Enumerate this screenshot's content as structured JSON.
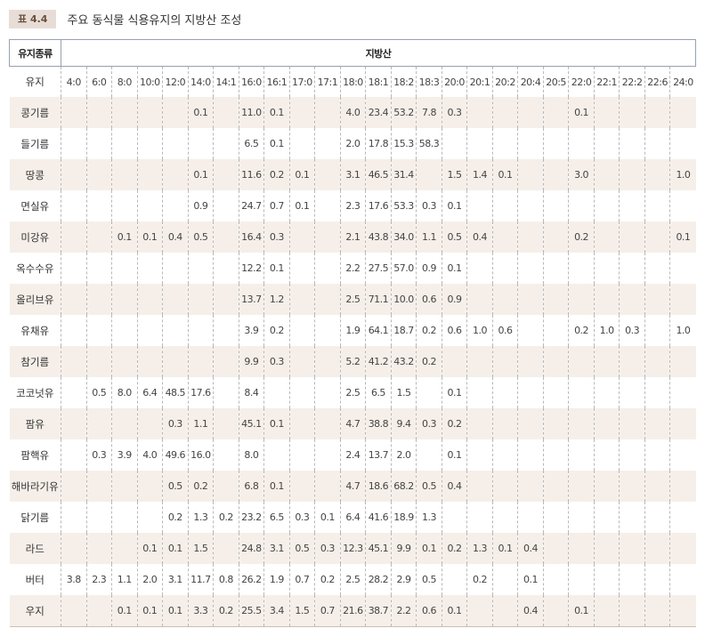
{
  "caption": {
    "badge": "표 4.4",
    "title": "주요 동식물 식용유지의 지방산 조성"
  },
  "table": {
    "header_oil": "유지종류",
    "header_fa": "지방산",
    "row_header_label": "유지",
    "fatty_acids": [
      "4:0",
      "6:0",
      "8:0",
      "10:0",
      "12:0",
      "14:0",
      "14:1",
      "16:0",
      "16:1",
      "17:0",
      "17:1",
      "18:0",
      "18:1",
      "18:2",
      "18:3",
      "20:0",
      "20:1",
      "20:2",
      "20:4",
      "20:5",
      "22:0",
      "22:1",
      "22:2",
      "22:6",
      "24:0"
    ],
    "rows": [
      {
        "name": "콩기름",
        "values": [
          "",
          "",
          "",
          "",
          "",
          "0.1",
          "",
          "11.0",
          "0.1",
          "",
          "",
          "4.0",
          "23.4",
          "53.2",
          "7.8",
          "0.3",
          "",
          "",
          "",
          "",
          "0.1",
          "",
          "",
          "",
          ""
        ]
      },
      {
        "name": "들기름",
        "values": [
          "",
          "",
          "",
          "",
          "",
          "",
          "",
          "6.5",
          "0.1",
          "",
          "",
          "2.0",
          "17.8",
          "15.3",
          "58.3",
          "",
          "",
          "",
          "",
          "",
          "",
          "",
          "",
          "",
          ""
        ]
      },
      {
        "name": "땅콩",
        "values": [
          "",
          "",
          "",
          "",
          "",
          "0.1",
          "",
          "11.6",
          "0.2",
          "0.1",
          "",
          "3.1",
          "46.5",
          "31.4",
          "",
          "1.5",
          "1.4",
          "0.1",
          "",
          "",
          "3.0",
          "",
          "",
          "",
          "1.0"
        ]
      },
      {
        "name": "면실유",
        "values": [
          "",
          "",
          "",
          "",
          "",
          "0.9",
          "",
          "24.7",
          "0.7",
          "0.1",
          "",
          "2.3",
          "17.6",
          "53.3",
          "0.3",
          "0.1",
          "",
          "",
          "",
          "",
          "",
          "",
          "",
          "",
          ""
        ]
      },
      {
        "name": "미강유",
        "values": [
          "",
          "",
          "0.1",
          "0.1",
          "0.4",
          "0.5",
          "",
          "16.4",
          "0.3",
          "",
          "",
          "2.1",
          "43.8",
          "34.0",
          "1.1",
          "0.5",
          "0.4",
          "",
          "",
          "",
          "0.2",
          "",
          "",
          "",
          "0.1"
        ]
      },
      {
        "name": "옥수수유",
        "values": [
          "",
          "",
          "",
          "",
          "",
          "",
          "",
          "12.2",
          "0.1",
          "",
          "",
          "2.2",
          "27.5",
          "57.0",
          "0.9",
          "0.1",
          "",
          "",
          "",
          "",
          "",
          "",
          "",
          "",
          ""
        ]
      },
      {
        "name": "올리브유",
        "values": [
          "",
          "",
          "",
          "",
          "",
          "",
          "",
          "13.7",
          "1.2",
          "",
          "",
          "2.5",
          "71.1",
          "10.0",
          "0.6",
          "0.9",
          "",
          "",
          "",
          "",
          "",
          "",
          "",
          "",
          ""
        ]
      },
      {
        "name": "유채유",
        "values": [
          "",
          "",
          "",
          "",
          "",
          "",
          "",
          "3.9",
          "0.2",
          "",
          "",
          "1.9",
          "64.1",
          "18.7",
          "0.2",
          "0.6",
          "1.0",
          "0.6",
          "",
          "",
          "0.2",
          "1.0",
          "0.3",
          "",
          "1.0"
        ]
      },
      {
        "name": "참기름",
        "values": [
          "",
          "",
          "",
          "",
          "",
          "",
          "",
          "9.9",
          "0.3",
          "",
          "",
          "5.2",
          "41.2",
          "43.2",
          "0.2",
          "",
          "",
          "",
          "",
          "",
          "",
          "",
          "",
          "",
          ""
        ]
      },
      {
        "name": "코코넛유",
        "values": [
          "",
          "0.5",
          "8.0",
          "6.4",
          "48.5",
          "17.6",
          "",
          "8.4",
          "",
          "",
          "",
          "2.5",
          "6.5",
          "1.5",
          "",
          "0.1",
          "",
          "",
          "",
          "",
          "",
          "",
          "",
          "",
          ""
        ]
      },
      {
        "name": "팜유",
        "values": [
          "",
          "",
          "",
          "",
          "0.3",
          "1.1",
          "",
          "45.1",
          "0.1",
          "",
          "",
          "4.7",
          "38.8",
          "9.4",
          "0.3",
          "0.2",
          "",
          "",
          "",
          "",
          "",
          "",
          "",
          "",
          ""
        ]
      },
      {
        "name": "팜핵유",
        "values": [
          "",
          "0.3",
          "3.9",
          "4.0",
          "49.6",
          "16.0",
          "",
          "8.0",
          "",
          "",
          "",
          "2.4",
          "13.7",
          "2.0",
          "",
          "0.1",
          "",
          "",
          "",
          "",
          "",
          "",
          "",
          "",
          ""
        ]
      },
      {
        "name": "해바라기유",
        "values": [
          "",
          "",
          "",
          "",
          "0.5",
          "0.2",
          "",
          "6.8",
          "0.1",
          "",
          "",
          "4.7",
          "18.6",
          "68.2",
          "0.5",
          "0.4",
          "",
          "",
          "",
          "",
          "",
          "",
          "",
          "",
          ""
        ]
      },
      {
        "name": "닭기름",
        "values": [
          "",
          "",
          "",
          "",
          "0.2",
          "1.3",
          "0.2",
          "23.2",
          "6.5",
          "0.3",
          "0.1",
          "6.4",
          "41.6",
          "18.9",
          "1.3",
          "",
          "",
          "",
          "",
          "",
          "",
          "",
          "",
          "",
          ""
        ]
      },
      {
        "name": "라드",
        "values": [
          "",
          "",
          "",
          "0.1",
          "0.1",
          "1.5",
          "",
          "24.8",
          "3.1",
          "0.5",
          "0.3",
          "12.3",
          "45.1",
          "9.9",
          "0.1",
          "0.2",
          "1.3",
          "0.1",
          "0.4",
          "",
          "",
          "",
          "",
          "",
          ""
        ]
      },
      {
        "name": "버터",
        "values": [
          "3.8",
          "2.3",
          "1.1",
          "2.0",
          "3.1",
          "11.7",
          "0.8",
          "26.2",
          "1.9",
          "0.7",
          "0.2",
          "2.5",
          "28.2",
          "2.9",
          "0.5",
          "",
          "0.2",
          "",
          "0.1",
          "",
          "",
          "",
          "",
          "",
          ""
        ]
      },
      {
        "name": "우지",
        "values": [
          "",
          "",
          "0.1",
          "0.1",
          "0.1",
          "3.3",
          "0.2",
          "25.5",
          "3.4",
          "1.5",
          "0.7",
          "21.6",
          "38.7",
          "2.2",
          "0.6",
          "0.1",
          "",
          "",
          "0.4",
          "",
          "0.1",
          "",
          "",
          "",
          ""
        ]
      }
    ]
  }
}
